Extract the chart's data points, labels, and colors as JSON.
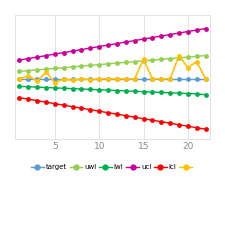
{
  "x": [
    1,
    2,
    3,
    4,
    5,
    6,
    7,
    8,
    9,
    10,
    11,
    12,
    13,
    14,
    15,
    16,
    17,
    18,
    19,
    20,
    21,
    22
  ],
  "target": [
    1.0,
    1.0,
    1.0,
    1.0,
    1.0,
    1.0,
    1.0,
    1.0,
    1.0,
    1.0,
    1.0,
    1.0,
    1.0,
    1.0,
    1.0,
    1.0,
    1.0,
    1.0,
    1.0,
    1.0,
    1.0,
    1.0
  ],
  "uwl": [
    2.0,
    2.1,
    2.2,
    2.3,
    2.4,
    2.5,
    2.6,
    2.7,
    2.8,
    2.9,
    3.0,
    3.1,
    3.2,
    3.3,
    3.4,
    3.5,
    3.6,
    3.7,
    3.8,
    3.9,
    4.0,
    4.1
  ],
  "lwl": [
    0.0,
    -0.05,
    -0.1,
    -0.15,
    -0.2,
    -0.25,
    -0.3,
    -0.35,
    -0.4,
    -0.45,
    -0.5,
    -0.55,
    -0.6,
    -0.65,
    -0.7,
    -0.75,
    -0.8,
    -0.85,
    -0.9,
    -0.95,
    -1.0,
    -1.1
  ],
  "ucl": [
    3.5,
    3.7,
    3.9,
    4.1,
    4.3,
    4.5,
    4.7,
    4.9,
    5.1,
    5.3,
    5.5,
    5.7,
    5.9,
    6.1,
    6.3,
    6.5,
    6.7,
    6.9,
    7.1,
    7.3,
    7.5,
    7.7
  ],
  "lcl": [
    -1.5,
    -1.7,
    -1.9,
    -2.1,
    -2.3,
    -2.5,
    -2.7,
    -2.9,
    -3.1,
    -3.3,
    -3.5,
    -3.7,
    -3.9,
    -4.1,
    -4.3,
    -4.5,
    -4.7,
    -4.9,
    -5.1,
    -5.3,
    -5.5,
    -5.7
  ],
  "actual": [
    1.0,
    1.4,
    0.7,
    1.9,
    0.5,
    1.0,
    0.8,
    1.0,
    0.9,
    1.0,
    1.0,
    1.0,
    1.0,
    1.0,
    3.6,
    1.0,
    1.0,
    1.0,
    4.1,
    2.5,
    3.3,
    1.0
  ],
  "colors": {
    "target": "#5b9bd5",
    "uwl": "#92d050",
    "lwl": "#00b050",
    "ucl": "#cc0099",
    "lcl": "#ff0000",
    "actual": "#ffc000"
  },
  "xlim": [
    0.5,
    22.5
  ],
  "ylim": [
    -7.0,
    9.5
  ],
  "xticks": [
    5,
    10,
    15,
    20
  ],
  "background": "#ffffff",
  "grid_color": "#d8d8d8",
  "legend_labels": [
    "target",
    "uwl",
    "lwl",
    "ucl",
    "lcl",
    ""
  ]
}
